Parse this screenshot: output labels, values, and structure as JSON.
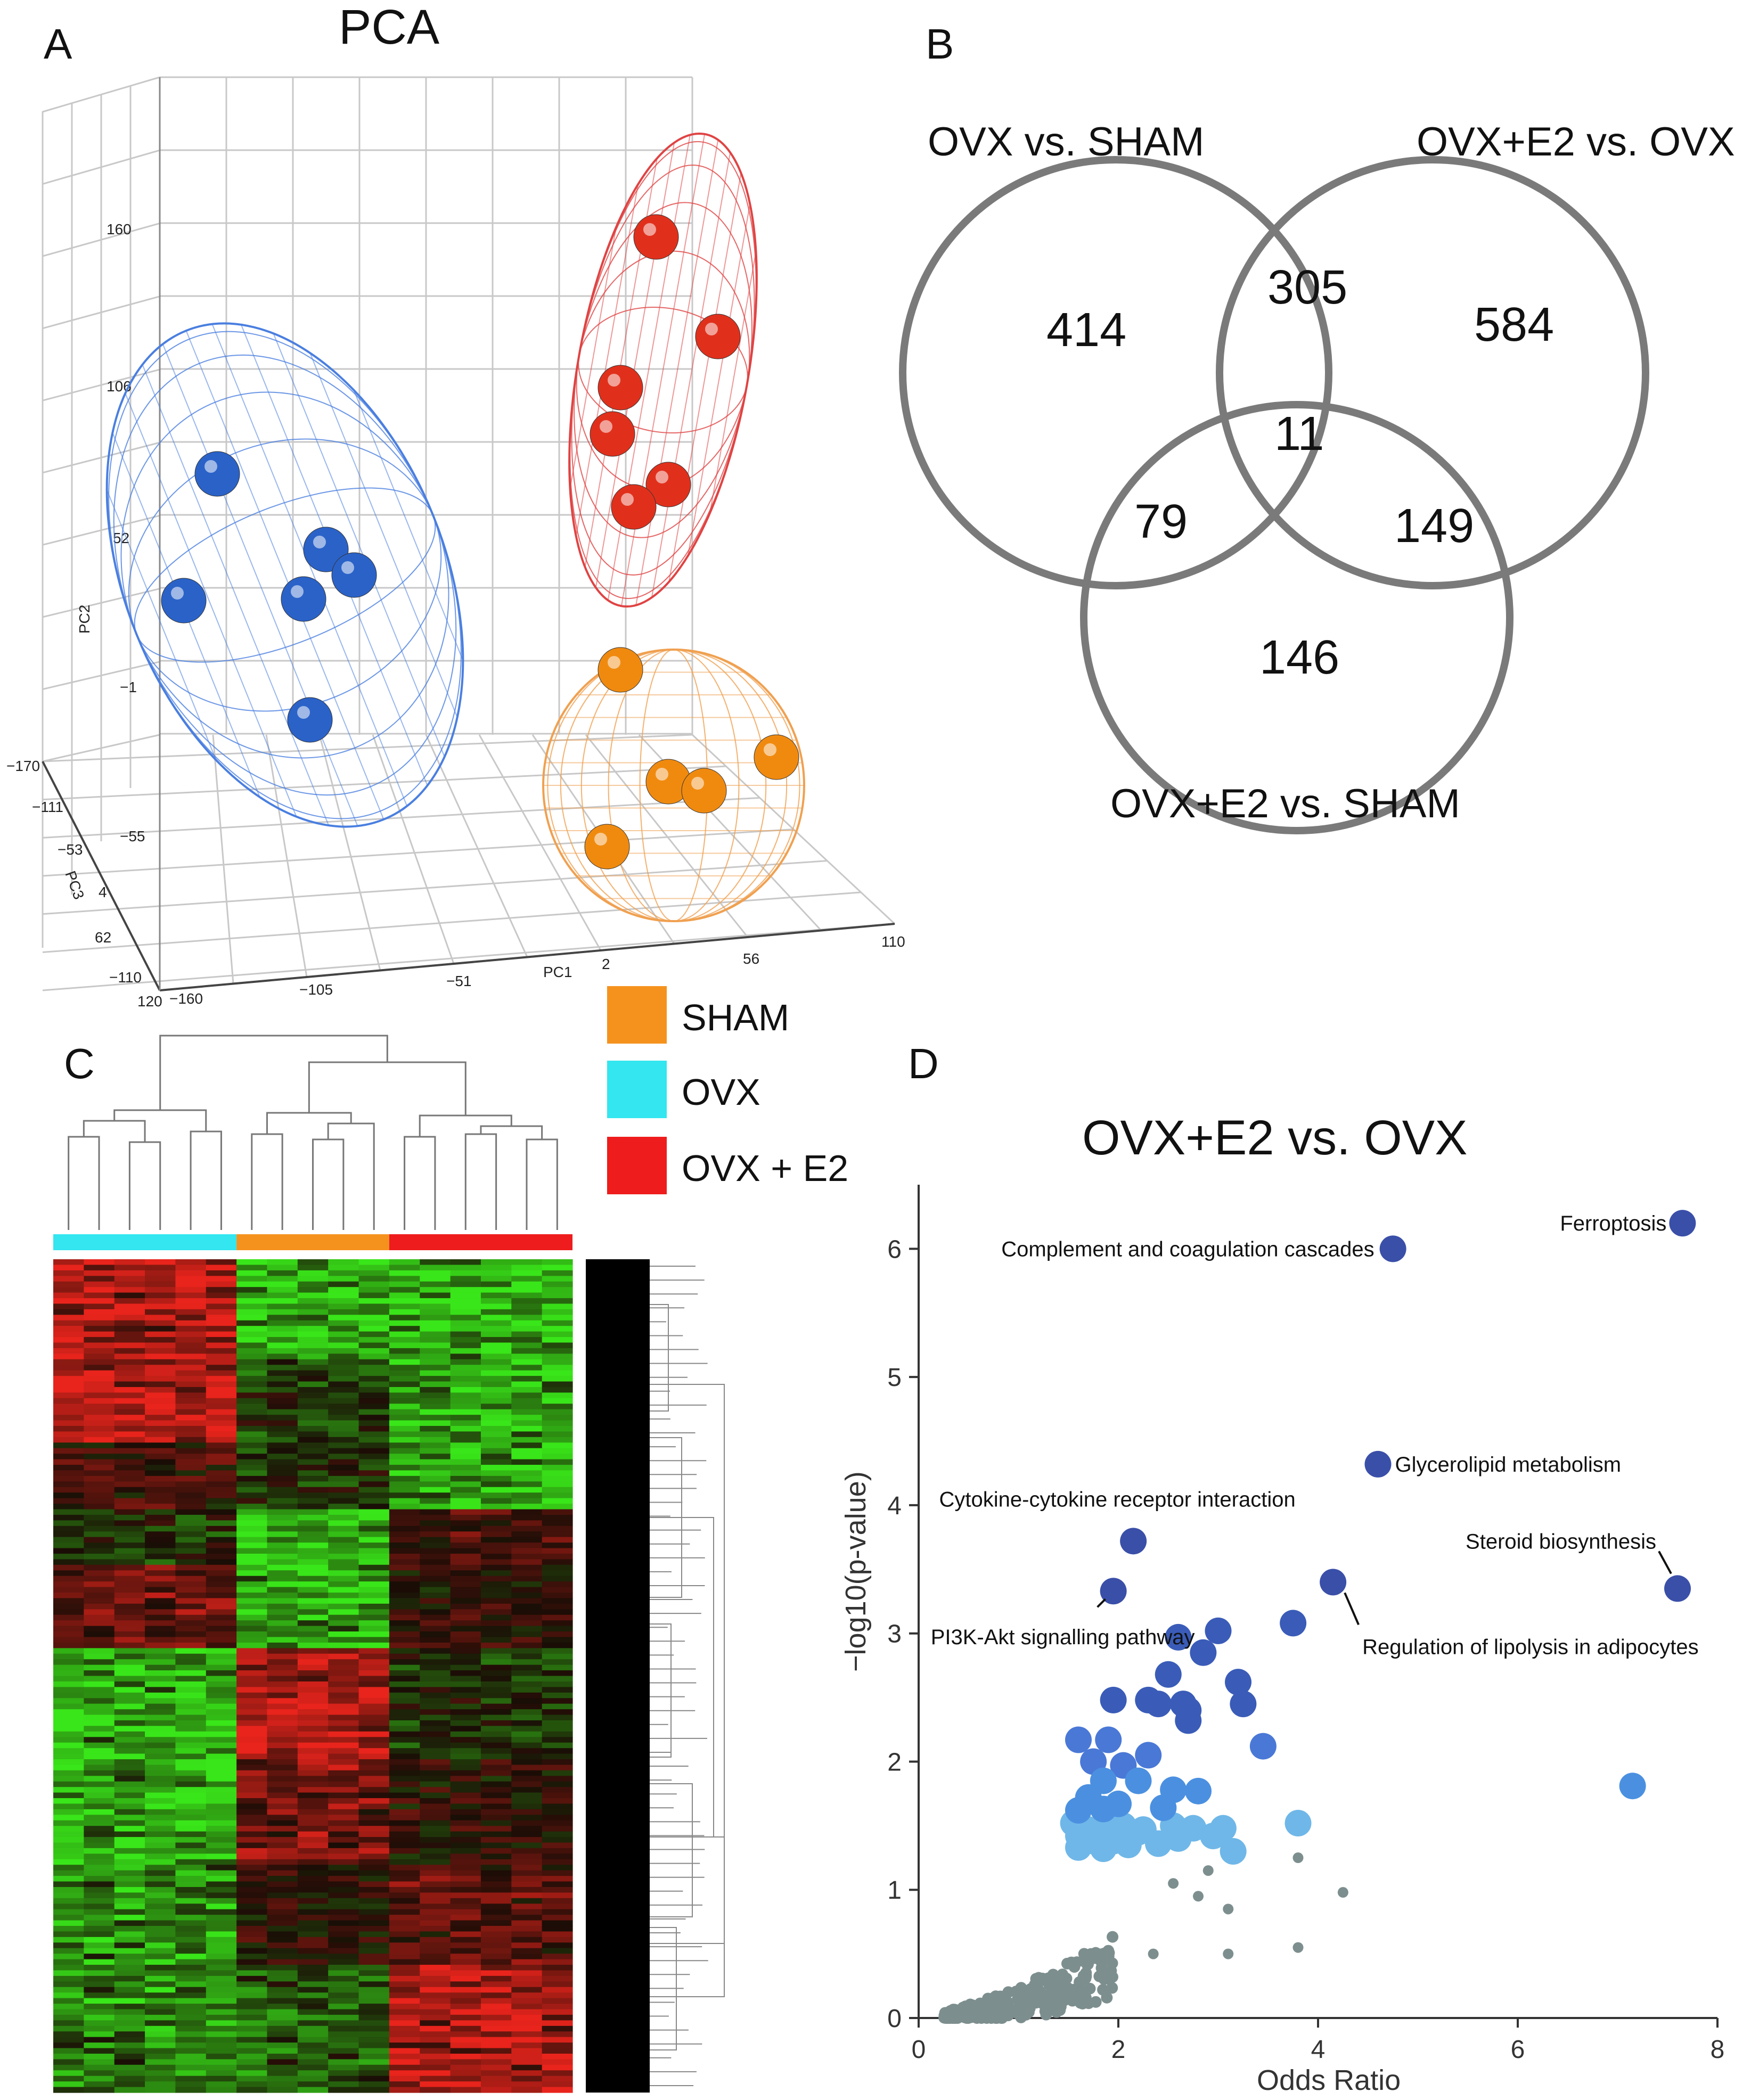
{
  "panels": {
    "A": {
      "letter": "A",
      "title": "PCA"
    },
    "B": {
      "letter": "B"
    },
    "C": {
      "letter": "C"
    },
    "D": {
      "letter": "D"
    }
  },
  "pca": {
    "axes": {
      "pc1_label": "PC1",
      "pc2_label": "PC2",
      "pc3_label": "PC3",
      "pc1_ticks": [
        "−160",
        "−105",
        "−51",
        "2",
        "56",
        "110"
      ],
      "pc2_ticks": [
        "160",
        "106",
        "52",
        "−1",
        "−55",
        "−110"
      ],
      "pc3_ticks": [
        "−170",
        "−111",
        "−53",
        "4",
        "62",
        "120"
      ]
    },
    "colors": {
      "SHAM": "#f08a0f",
      "OVX": "#2f6fd0",
      "OVX + E2": "#e02a1a"
    }
  },
  "venn": {
    "sets": [
      "OVX vs. SHAM",
      "OVX+E2 vs. OVX",
      "OVX+E2 vs. SHAM"
    ],
    "regions": {
      "only_ovx_sham": "414",
      "only_e2_ovx": "584",
      "only_e2_sham": "146",
      "ovx_sham_and_e2_ovx": "305",
      "ovx_sham_and_e2_sham": "79",
      "e2_ovx_and_e2_sham": "149",
      "all_three": "11"
    }
  },
  "legend": {
    "items": [
      {
        "label": "SHAM",
        "color": "#f5921e"
      },
      {
        "label": "OVX",
        "color": "#33e6ef"
      },
      {
        "label": "OVX + E2",
        "color": "#ee1c1c"
      }
    ]
  },
  "heatmap": {
    "groups": [
      {
        "name": "OVX",
        "color": "#33e6ef",
        "samples": 6
      },
      {
        "name": "SHAM",
        "color": "#f5921e",
        "samples": 5
      },
      {
        "name": "OVX + E2",
        "color": "#ee1c1c",
        "samples": 6
      }
    ],
    "palette": {
      "high": "#e8241c",
      "low": "#39e619",
      "mid": "#1a0d06"
    }
  },
  "chart_data": {
    "type": "scatter",
    "title": "OVX+E2 vs. OVX",
    "xlabel": "Odds Ratio",
    "ylabel": "−log10(p-value)",
    "xlim": [
      0,
      8
    ],
    "ylim": [
      0,
      6.5
    ],
    "xticks": [
      "0",
      "2",
      "4",
      "6",
      "8"
    ],
    "yticks": [
      "0",
      "1",
      "2",
      "3",
      "4",
      "5",
      "6"
    ],
    "labeled_points": [
      {
        "name": "Ferroptosis",
        "x": 7.65,
        "y": 6.2
      },
      {
        "name": "Complement and coagulation cascades",
        "x": 4.75,
        "y": 6.0
      },
      {
        "name": "Glycerolipid metabolism",
        "x": 4.6,
        "y": 4.32
      },
      {
        "name": "Cytokine-cytokine receptor interaction",
        "x": 2.15,
        "y": 3.72
      },
      {
        "name": "Steroid biosynthesis",
        "x": 7.6,
        "y": 3.35
      },
      {
        "name": "PI3K-Akt signalling pathway",
        "x": 1.95,
        "y": 3.33
      },
      {
        "name": "Regulation of lipolysis in adipocytes",
        "x": 4.15,
        "y": 3.4
      }
    ],
    "significant_points": [
      [
        7.15,
        1.81
      ],
      [
        3.75,
        3.08
      ],
      [
        3.0,
        3.02
      ],
      [
        2.6,
        2.97
      ],
      [
        2.85,
        2.85
      ],
      [
        2.5,
        2.68
      ],
      [
        3.2,
        2.62
      ],
      [
        1.95,
        2.48
      ],
      [
        2.3,
        2.48
      ],
      [
        2.4,
        2.45
      ],
      [
        2.65,
        2.45
      ],
      [
        2.7,
        2.4
      ],
      [
        3.25,
        2.45
      ],
      [
        2.7,
        2.32
      ],
      [
        1.6,
        2.17
      ],
      [
        1.9,
        2.17
      ],
      [
        3.45,
        2.12
      ],
      [
        2.3,
        2.05
      ],
      [
        1.75,
        2.0
      ],
      [
        2.05,
        1.97
      ],
      [
        1.85,
        1.85
      ],
      [
        2.2,
        1.85
      ],
      [
        2.55,
        1.78
      ],
      [
        2.8,
        1.77
      ],
      [
        1.7,
        1.72
      ],
      [
        1.6,
        1.62
      ],
      [
        1.85,
        1.63
      ],
      [
        2.0,
        1.67
      ],
      [
        2.45,
        1.64
      ]
    ],
    "moderate_points": [
      [
        1.55,
        1.52
      ],
      [
        1.7,
        1.47
      ],
      [
        1.85,
        1.47
      ],
      [
        2.05,
        1.5
      ],
      [
        2.25,
        1.47
      ],
      [
        2.55,
        1.5
      ],
      [
        2.75,
        1.48
      ],
      [
        3.05,
        1.48
      ],
      [
        3.8,
        1.52
      ],
      [
        1.6,
        1.42
      ],
      [
        2.2,
        1.45
      ],
      [
        2.95,
        1.42
      ],
      [
        1.75,
        1.38
      ],
      [
        1.95,
        1.38
      ],
      [
        2.6,
        1.4
      ],
      [
        1.6,
        1.33
      ],
      [
        1.85,
        1.32
      ],
      [
        2.1,
        1.35
      ],
      [
        2.4,
        1.36
      ],
      [
        3.15,
        1.3
      ]
    ]
  }
}
